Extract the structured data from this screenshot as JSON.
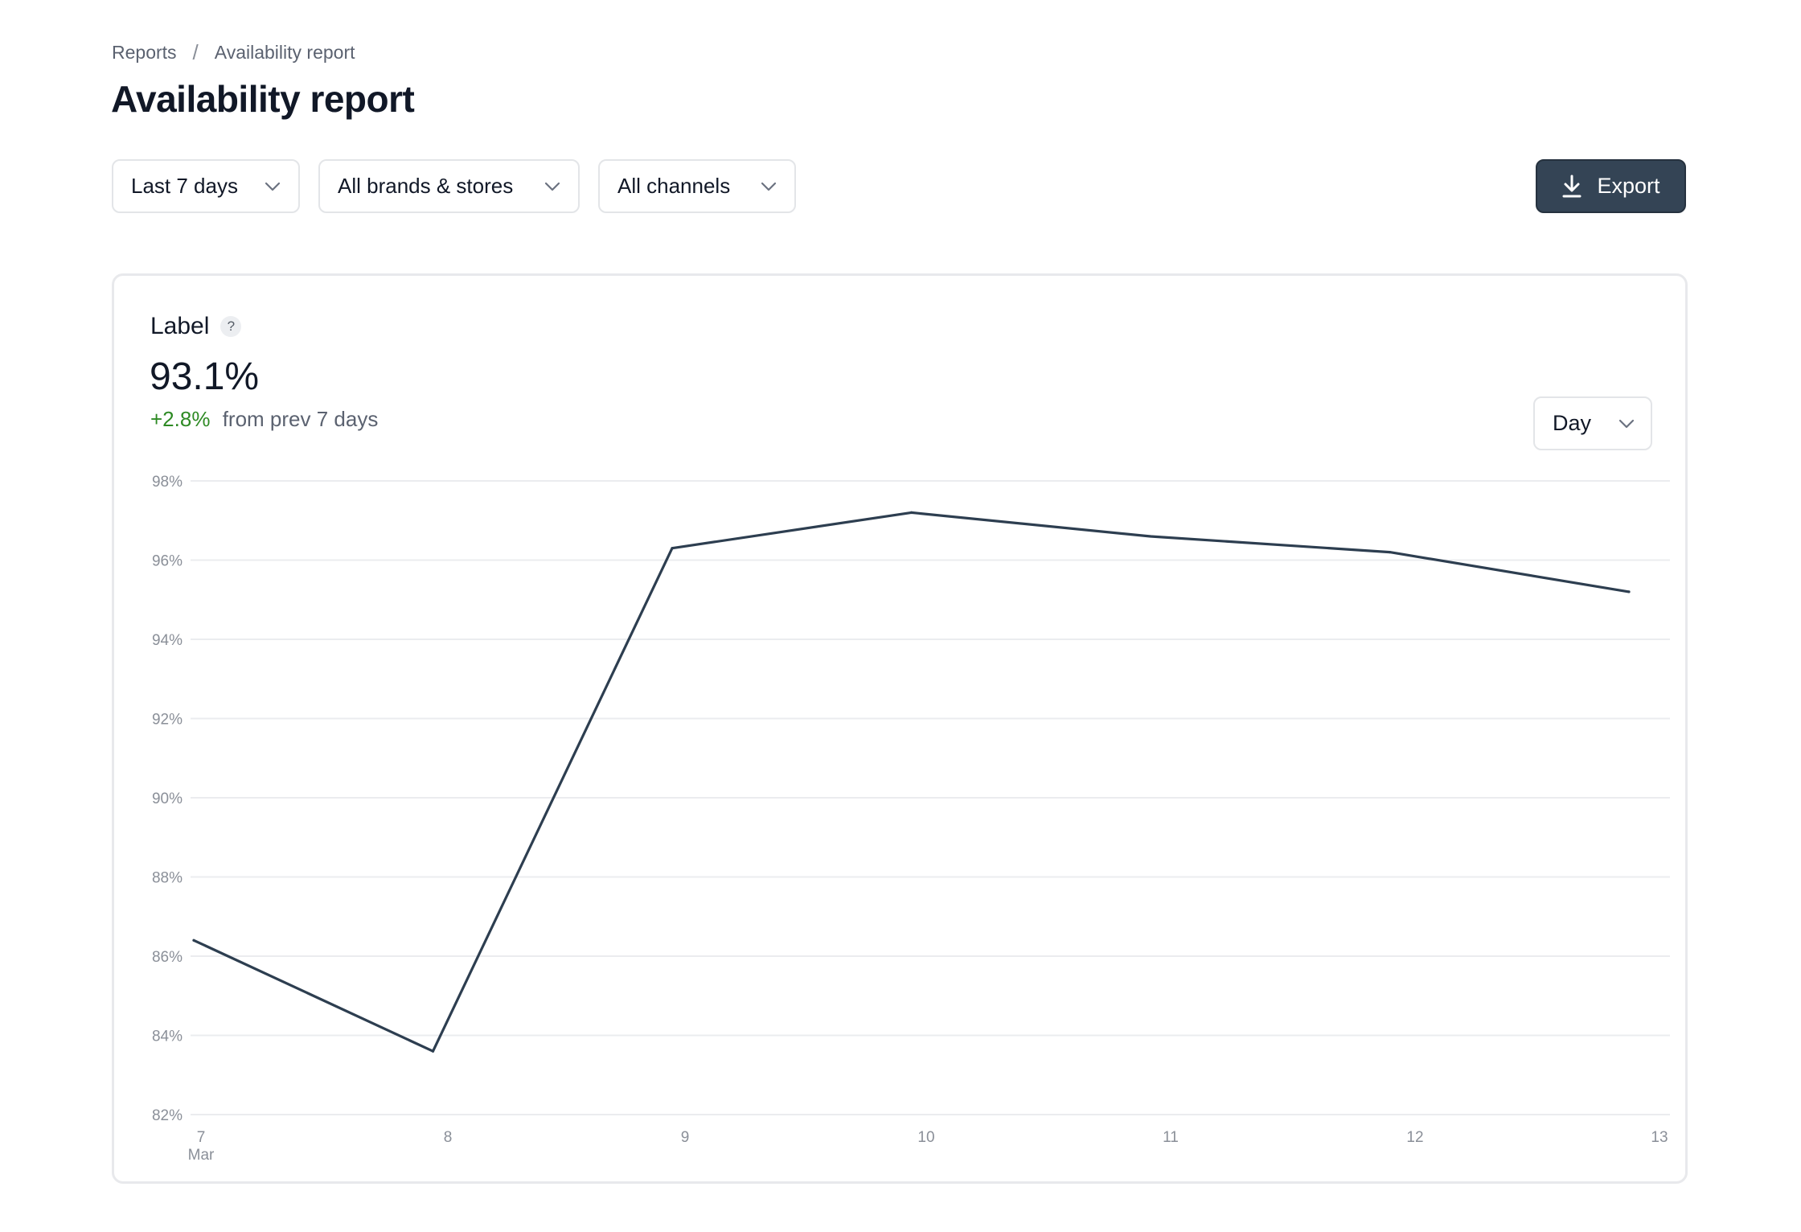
{
  "breadcrumb": {
    "items": [
      "Reports",
      "Availability report"
    ],
    "separator": "/"
  },
  "page": {
    "title": "Availability report"
  },
  "filters": {
    "date_range": "Last 7 days",
    "brands": "All brands & stores",
    "channels": "All channels"
  },
  "toolbar": {
    "export_label": "Export",
    "export_icon": "download-icon"
  },
  "metric": {
    "label": "Label",
    "help_glyph": "?",
    "value": "93.1%",
    "delta": "+2.8%",
    "delta_suffix": "from prev 7 days",
    "delta_color": "#2e8a24"
  },
  "period_select": {
    "value": "Day"
  },
  "colors": {
    "accent": "#344455",
    "line": "#2d3e50",
    "grid": "#ebecef"
  },
  "chart_data": {
    "type": "line",
    "x": [
      "7",
      "8",
      "9",
      "10",
      "11",
      "12",
      "13"
    ],
    "x_sublabel": "Mar",
    "series": [
      {
        "values": [
          86.4,
          83.6,
          96.3,
          97.2,
          96.6,
          96.2,
          95.2
        ]
      }
    ],
    "yticks": [
      "98%",
      "96%",
      "94%",
      "92%",
      "90%",
      "88%",
      "86%",
      "84%",
      "82%"
    ],
    "ylim": [
      82,
      98
    ],
    "grid": true,
    "legend": "none"
  }
}
